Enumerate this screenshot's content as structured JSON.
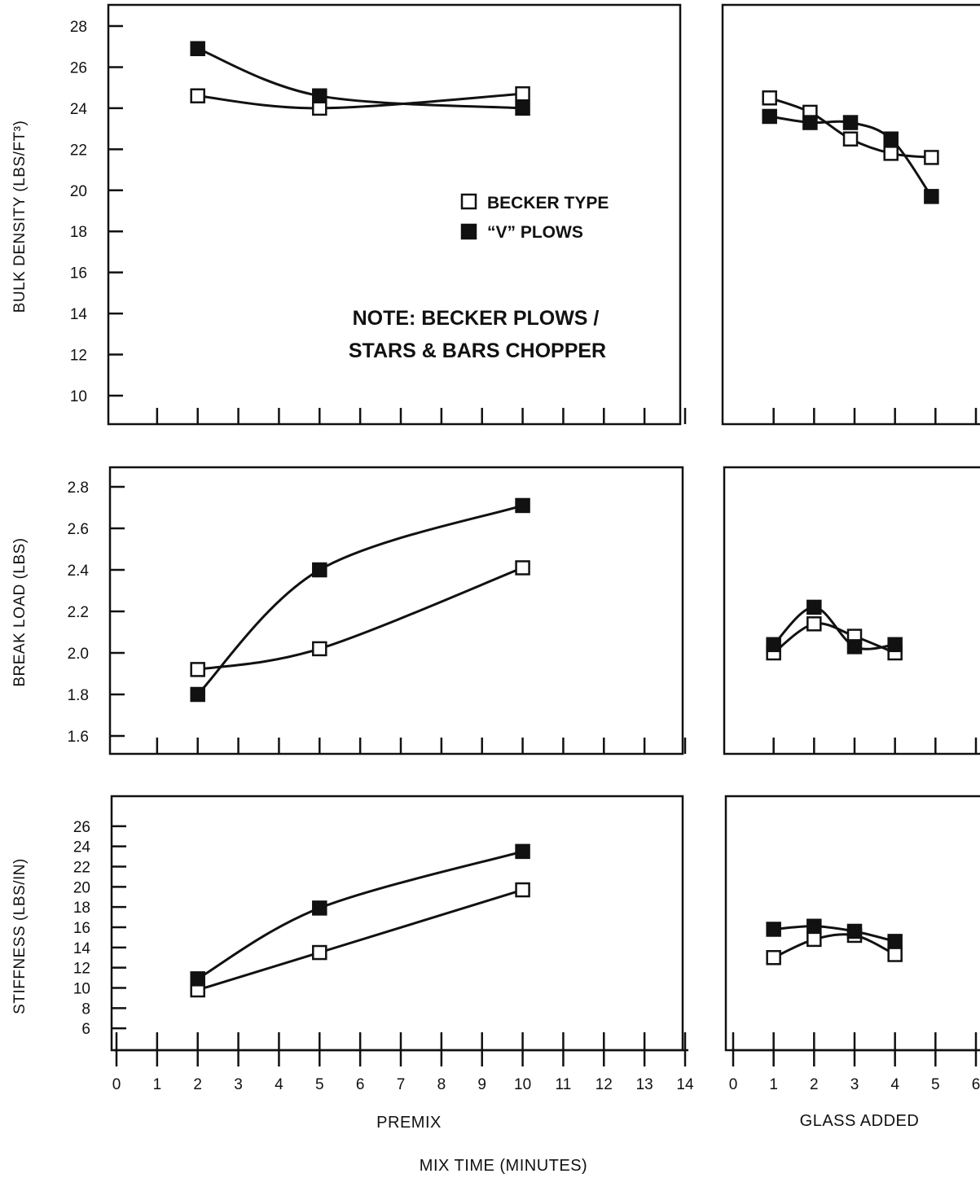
{
  "legend": {
    "items": [
      {
        "name": "BECKER TYPE",
        "marker": "open-square"
      },
      {
        "name": "“V” PLOWS",
        "marker": "filled-square"
      }
    ]
  },
  "note": {
    "line1": "NOTE: BECKER PLOWS /",
    "line2": "STARS & BARS CHOPPER"
  },
  "x_axes": {
    "premix": {
      "label": "PREMIX",
      "ticks": [
        "0",
        "1",
        "2",
        "3",
        "4",
        "5",
        "6",
        "7",
        "8",
        "9",
        "10",
        "11",
        "12",
        "13",
        "14"
      ]
    },
    "glass": {
      "label": "GLASS ADDED",
      "ticks": [
        "0",
        "1",
        "2",
        "3",
        "4",
        "5",
        "6"
      ]
    },
    "shared_label": "MIX TIME (MINUTES)"
  },
  "colors": {
    "ink": "#111111",
    "open_marker_fill": "#ffffff",
    "filled_marker_fill": "#111111"
  },
  "chart_data": [
    {
      "type": "line",
      "panel": "bulk-density-premix",
      "ylabel": "BULK DENSITY (LBS/FT³)",
      "xlabel": "PREMIX",
      "ylim": [
        10,
        28
      ],
      "xlim": [
        0,
        14
      ],
      "yticks": [
        "10",
        "12",
        "14",
        "16",
        "18",
        "20",
        "22",
        "24",
        "26",
        "28"
      ],
      "series": [
        {
          "name": "BECKER TYPE",
          "marker": "open",
          "x": [
            2,
            5,
            10
          ],
          "y": [
            24.6,
            24.0,
            24.7
          ]
        },
        {
          "name": "“V” PLOWS",
          "marker": "filled",
          "x": [
            2,
            5,
            10
          ],
          "y": [
            26.9,
            24.6,
            24.0
          ]
        }
      ]
    },
    {
      "type": "line",
      "panel": "bulk-density-glass",
      "xlabel": "GLASS ADDED",
      "ylim": [
        10,
        28
      ],
      "xlim": [
        0,
        6
      ],
      "series": [
        {
          "name": "BECKER TYPE",
          "marker": "open",
          "x": [
            0.9,
            1.9,
            2.9,
            3.9,
            4.9
          ],
          "y": [
            24.5,
            23.8,
            22.5,
            21.8,
            21.6
          ]
        },
        {
          "name": "“V” PLOWS",
          "marker": "filled",
          "x": [
            0.9,
            1.9,
            2.9,
            3.9,
            4.9
          ],
          "y": [
            23.6,
            23.3,
            23.3,
            22.5,
            19.7
          ]
        }
      ]
    },
    {
      "type": "line",
      "panel": "break-load-premix",
      "ylabel": "BREAK LOAD (LBS)",
      "xlabel": "PREMIX",
      "ylim": [
        1.6,
        2.8
      ],
      "xlim": [
        0,
        14
      ],
      "yticks": [
        "1.6",
        "1.8",
        "2.0",
        "2.2",
        "2.4",
        "2.6",
        "2.8"
      ],
      "series": [
        {
          "name": "BECKER TYPE",
          "marker": "open",
          "x": [
            2,
            5,
            10
          ],
          "y": [
            1.92,
            2.02,
            2.41
          ]
        },
        {
          "name": "“V” PLOWS",
          "marker": "filled",
          "x": [
            2,
            5,
            10
          ],
          "y": [
            1.8,
            2.4,
            2.71
          ]
        }
      ]
    },
    {
      "type": "line",
      "panel": "break-load-glass",
      "xlabel": "GLASS ADDED",
      "ylim": [
        1.6,
        2.8
      ],
      "xlim": [
        0,
        6
      ],
      "series": [
        {
          "name": "BECKER TYPE",
          "marker": "open",
          "x": [
            1,
            2,
            3,
            4
          ],
          "y": [
            2.0,
            2.14,
            2.08,
            2.0
          ]
        },
        {
          "name": "“V” PLOWS",
          "marker": "filled",
          "x": [
            1,
            2,
            3,
            4
          ],
          "y": [
            2.04,
            2.22,
            2.03,
            2.04
          ]
        }
      ]
    },
    {
      "type": "line",
      "panel": "stiffness-premix",
      "ylabel": "STIFFNESS (LBS/IN)",
      "xlabel": "PREMIX",
      "ylim": [
        4,
        28
      ],
      "xlim": [
        0,
        14
      ],
      "yticks": [
        "6",
        "8",
        "10",
        "12",
        "14",
        "16",
        "18",
        "20",
        "22",
        "24",
        "26"
      ],
      "series": [
        {
          "name": "BECKER TYPE",
          "marker": "open",
          "x": [
            2,
            5,
            10
          ],
          "y": [
            9.8,
            13.5,
            19.7
          ]
        },
        {
          "name": "“V” PLOWS",
          "marker": "filled",
          "x": [
            2,
            5,
            10
          ],
          "y": [
            10.9,
            17.9,
            23.5
          ]
        }
      ]
    },
    {
      "type": "line",
      "panel": "stiffness-glass",
      "xlabel": "GLASS ADDED",
      "ylim": [
        4,
        28
      ],
      "xlim": [
        0,
        6
      ],
      "series": [
        {
          "name": "BECKER TYPE",
          "marker": "open",
          "x": [
            1,
            2,
            3,
            4
          ],
          "y": [
            13.0,
            14.8,
            15.2,
            13.3
          ]
        },
        {
          "name": "“V” PLOWS",
          "marker": "filled",
          "x": [
            1,
            2,
            3,
            4
          ],
          "y": [
            15.8,
            16.1,
            15.6,
            14.6
          ]
        }
      ]
    }
  ]
}
